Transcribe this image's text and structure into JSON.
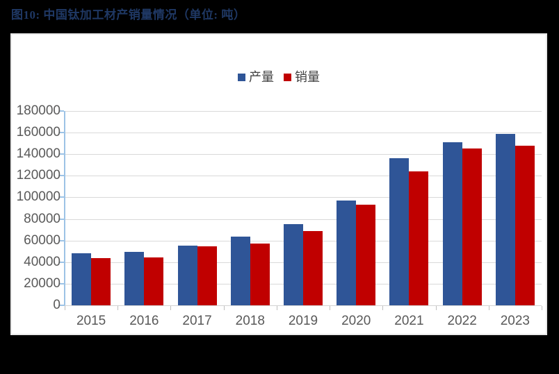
{
  "page": {
    "background": "#000000"
  },
  "figure": {
    "title": "图10:  中国钛加工材产销量情况（单位: 吨）",
    "title_color": "#1f3864"
  },
  "legend": {
    "items": [
      {
        "label": "产量",
        "color": "#2f5597"
      },
      {
        "label": "销量",
        "color": "#c00000"
      }
    ]
  },
  "chart_data": {
    "type": "bar",
    "title": "中国钛加工材产销量情况",
    "unit": "吨",
    "categories": [
      "2015",
      "2016",
      "2017",
      "2018",
      "2019",
      "2020",
      "2021",
      "2022",
      "2023"
    ],
    "series": [
      {
        "name": "产量",
        "color": "#2f5597",
        "values": [
          48000,
          49500,
          55000,
          63500,
          75000,
          97000,
          136000,
          151000,
          159000
        ]
      },
      {
        "name": "销量",
        "color": "#c00000",
        "values": [
          43500,
          44500,
          54500,
          57000,
          68500,
          93500,
          124000,
          145500,
          148000
        ]
      }
    ],
    "ylim": [
      0,
      180000
    ],
    "ytick_step": 20000,
    "ytick_labels": [
      "0",
      "20000",
      "40000",
      "60000",
      "80000",
      "100000",
      "120000",
      "140000",
      "160000",
      "180000"
    ],
    "grid": true,
    "legend_position": "top-center",
    "styles": {
      "gridline_color": "#d9d9d9",
      "y_axis_color": "#9dc3e6",
      "x_axis_color": "#d3d3d3",
      "tick_label_color": "#595959"
    }
  }
}
